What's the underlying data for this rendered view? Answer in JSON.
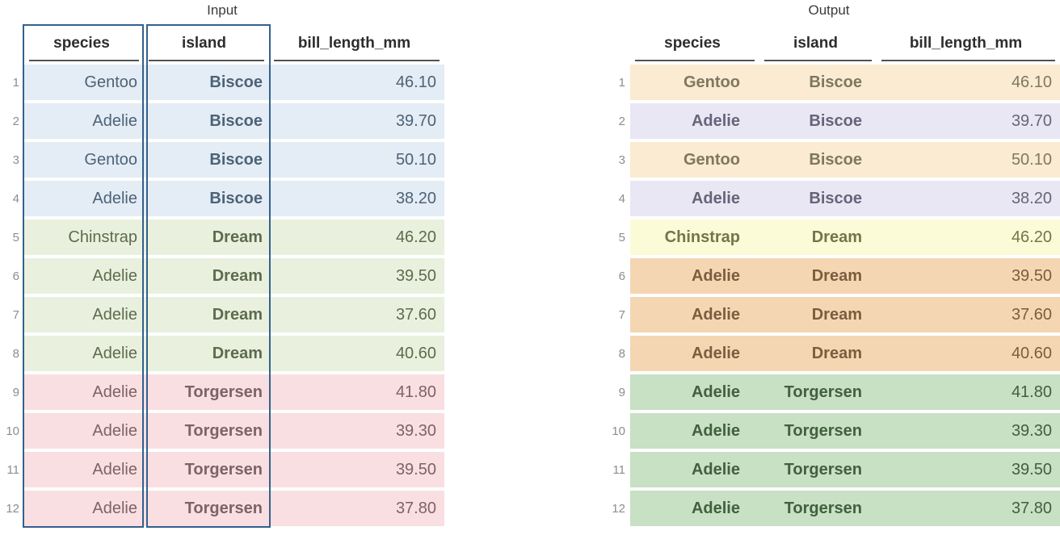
{
  "chart_data": [
    {
      "type": "table",
      "title": "Input",
      "columns": [
        "species",
        "island",
        "bill_length_mm"
      ],
      "highlighted_columns": [
        "species",
        "island"
      ],
      "row_color_rule": "rows colored by island",
      "rows": [
        {
          "index": "1",
          "species": "Gentoo",
          "island": "Biscoe",
          "bill_length_mm": "46.10",
          "color_group": "biscoe"
        },
        {
          "index": "2",
          "species": "Adelie",
          "island": "Biscoe",
          "bill_length_mm": "39.70",
          "color_group": "biscoe"
        },
        {
          "index": "3",
          "species": "Gentoo",
          "island": "Biscoe",
          "bill_length_mm": "50.10",
          "color_group": "biscoe"
        },
        {
          "index": "4",
          "species": "Adelie",
          "island": "Biscoe",
          "bill_length_mm": "38.20",
          "color_group": "biscoe"
        },
        {
          "index": "5",
          "species": "Chinstrap",
          "island": "Dream",
          "bill_length_mm": "46.20",
          "color_group": "dream"
        },
        {
          "index": "6",
          "species": "Adelie",
          "island": "Dream",
          "bill_length_mm": "39.50",
          "color_group": "dream"
        },
        {
          "index": "7",
          "species": "Adelie",
          "island": "Dream",
          "bill_length_mm": "37.60",
          "color_group": "dream"
        },
        {
          "index": "8",
          "species": "Adelie",
          "island": "Dream",
          "bill_length_mm": "40.60",
          "color_group": "dream"
        },
        {
          "index": "9",
          "species": "Adelie",
          "island": "Torgersen",
          "bill_length_mm": "41.80",
          "color_group": "torgersen"
        },
        {
          "index": "10",
          "species": "Adelie",
          "island": "Torgersen",
          "bill_length_mm": "39.30",
          "color_group": "torgersen"
        },
        {
          "index": "11",
          "species": "Adelie",
          "island": "Torgersen",
          "bill_length_mm": "39.50",
          "color_group": "torgersen"
        },
        {
          "index": "12",
          "species": "Adelie",
          "island": "Torgersen",
          "bill_length_mm": "37.80",
          "color_group": "torgersen"
        }
      ]
    },
    {
      "type": "table",
      "title": "Output",
      "columns": [
        "species",
        "island",
        "bill_length_mm"
      ],
      "highlighted_columns": [],
      "row_color_rule": "rows colored by species + island group",
      "rows": [
        {
          "index": "1",
          "species": "Gentoo",
          "island": "Biscoe",
          "bill_length_mm": "46.10",
          "color_group": "gentoo-biscoe"
        },
        {
          "index": "2",
          "species": "Adelie",
          "island": "Biscoe",
          "bill_length_mm": "39.70",
          "color_group": "adelie-biscoe"
        },
        {
          "index": "3",
          "species": "Gentoo",
          "island": "Biscoe",
          "bill_length_mm": "50.10",
          "color_group": "gentoo-biscoe"
        },
        {
          "index": "4",
          "species": "Adelie",
          "island": "Biscoe",
          "bill_length_mm": "38.20",
          "color_group": "adelie-biscoe"
        },
        {
          "index": "5",
          "species": "Chinstrap",
          "island": "Dream",
          "bill_length_mm": "46.20",
          "color_group": "chinstrap-dream"
        },
        {
          "index": "6",
          "species": "Adelie",
          "island": "Dream",
          "bill_length_mm": "39.50",
          "color_group": "adelie-dream"
        },
        {
          "index": "7",
          "species": "Adelie",
          "island": "Dream",
          "bill_length_mm": "37.60",
          "color_group": "adelie-dream"
        },
        {
          "index": "8",
          "species": "Adelie",
          "island": "Dream",
          "bill_length_mm": "40.60",
          "color_group": "adelie-dream"
        },
        {
          "index": "9",
          "species": "Adelie",
          "island": "Torgersen",
          "bill_length_mm": "41.80",
          "color_group": "adelie-torgersen"
        },
        {
          "index": "10",
          "species": "Adelie",
          "island": "Torgersen",
          "bill_length_mm": "39.30",
          "color_group": "adelie-torgersen"
        },
        {
          "index": "11",
          "species": "Adelie",
          "island": "Torgersen",
          "bill_length_mm": "39.50",
          "color_group": "adelie-torgersen"
        },
        {
          "index": "12",
          "species": "Adelie",
          "island": "Torgersen",
          "bill_length_mm": "37.80",
          "color_group": "adelie-torgersen"
        }
      ]
    }
  ],
  "colors": {
    "title_text": "#3c3c3c",
    "header_text": "#2d2d2d",
    "header_underline": "#4e5357",
    "row_index_text": "#8d8d8d",
    "column_box_border": "#33618d",
    "groups": {
      "biscoe": {
        "bg": "#e4ecf5",
        "text": "#4d6377"
      },
      "dream": {
        "bg": "#e9f1de",
        "text": "#5e6b4e"
      },
      "torgersen": {
        "bg": "#f9dfe1",
        "text": "#7c6367"
      },
      "gentoo-biscoe": {
        "bg": "#faebd2",
        "text": "#7f7860"
      },
      "adelie-biscoe": {
        "bg": "#e9e7f3",
        "text": "#67647a"
      },
      "chinstrap-dream": {
        "bg": "#fbfbd7",
        "text": "#73754a"
      },
      "adelie-dream": {
        "bg": "#f5d6b3",
        "text": "#795e3e"
      },
      "adelie-torgersen": {
        "bg": "#c8e0c4",
        "text": "#41603d"
      }
    }
  }
}
